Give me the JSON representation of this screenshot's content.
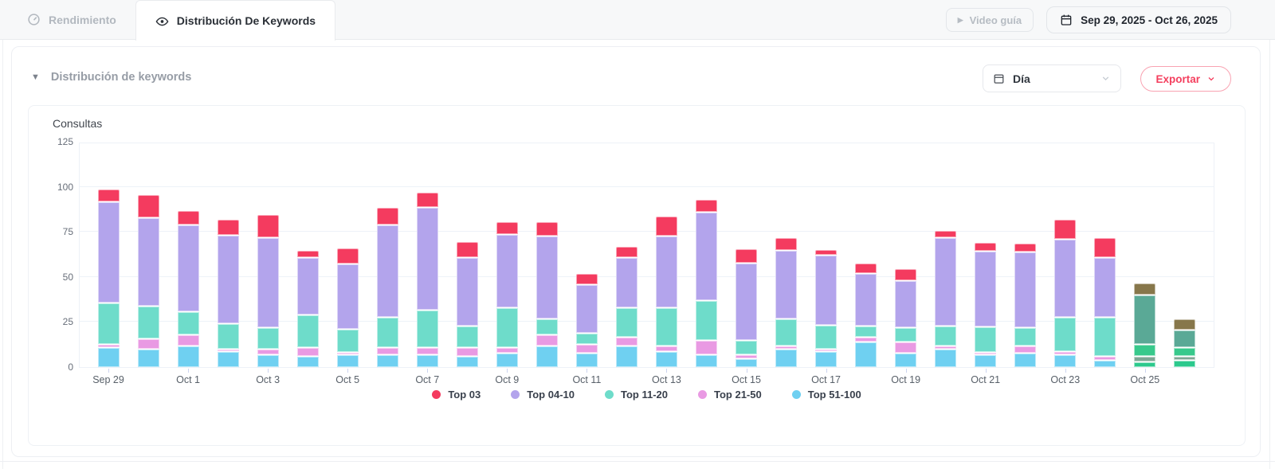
{
  "tab_bar": {
    "tabs": [
      {
        "label": "Rendimiento",
        "active": false
      },
      {
        "label": "Distribución De Keywords",
        "active": true
      }
    ],
    "video_button_label": "Video guía",
    "date_range": "Sep 29, 2025 - Oct 26, 2025"
  },
  "panel": {
    "title": "Distribución de keywords",
    "granularity_select": {
      "value": "Día"
    },
    "export_button_label": "Exportar"
  },
  "chart_data": {
    "type": "stacked-bar",
    "title": "Consultas",
    "ylim": [
      0,
      125
    ],
    "yticks": [
      0,
      25,
      50,
      75,
      100,
      125
    ],
    "grid": true,
    "legend_position": "bottom",
    "categories": [
      "Sep 29",
      "Sep 30",
      "Oct 1",
      "Oct 2",
      "Oct 3",
      "Oct 4",
      "Oct 5",
      "Oct 6",
      "Oct 7",
      "Oct 8",
      "Oct 9",
      "Oct 10",
      "Oct 11",
      "Oct 12",
      "Oct 13",
      "Oct 14",
      "Oct 15",
      "Oct 16",
      "Oct 17",
      "Oct 18",
      "Oct 19",
      "Oct 20",
      "Oct 21",
      "Oct 22",
      "Oct 23",
      "Oct 24",
      "Oct 25",
      "Oct 26"
    ],
    "x_labeled_every": 2,
    "series": [
      {
        "name": "Top 03",
        "color": "#f43b5f",
        "alt_color": "#87774b",
        "values": [
          7,
          13,
          8,
          9,
          13,
          4,
          9,
          10,
          8,
          9,
          7,
          8,
          6,
          6,
          11,
          7,
          8,
          7,
          3,
          6,
          7,
          4,
          5,
          5,
          11,
          11,
          7,
          6
        ]
      },
      {
        "name": "Top 04-10",
        "color": "#b3a4ec",
        "alt_color": "#5aa996",
        "values": [
          56,
          49,
          48,
          49,
          50,
          32,
          36,
          51,
          57,
          38,
          41,
          46,
          27,
          28,
          40,
          49,
          43,
          38,
          39,
          29,
          26,
          49,
          42,
          42,
          43,
          33,
          27,
          10
        ]
      },
      {
        "name": "Top 11-20",
        "color": "#6edcca",
        "alt_color": "#38c98c",
        "values": [
          23,
          18,
          13,
          14,
          12,
          18,
          13,
          17,
          21,
          12,
          22,
          9,
          6,
          16,
          21,
          22,
          8,
          15,
          13,
          6,
          8,
          11,
          14,
          10,
          19,
          22,
          7,
          5
        ]
      },
      {
        "name": "Top 21-50",
        "color": "#e99ae3",
        "alt_color": "#7ea795",
        "values": [
          2,
          6,
          6,
          1,
          3,
          5,
          1,
          4,
          4,
          5,
          3,
          6,
          5,
          5,
          3,
          8,
          2,
          2,
          1,
          3,
          6,
          2,
          1,
          4,
          2,
          2,
          3,
          2
        ]
      },
      {
        "name": "Top 51-100",
        "color": "#6fd0f1",
        "alt_color": "#2cc98d",
        "values": [
          11,
          10,
          12,
          9,
          7,
          6,
          7,
          7,
          7,
          6,
          8,
          12,
          8,
          12,
          9,
          7,
          5,
          10,
          9,
          14,
          8,
          10,
          7,
          8,
          7,
          4,
          3,
          4
        ]
      }
    ],
    "alt_palette_categories": [
      "Oct 25",
      "Oct 26"
    ]
  }
}
